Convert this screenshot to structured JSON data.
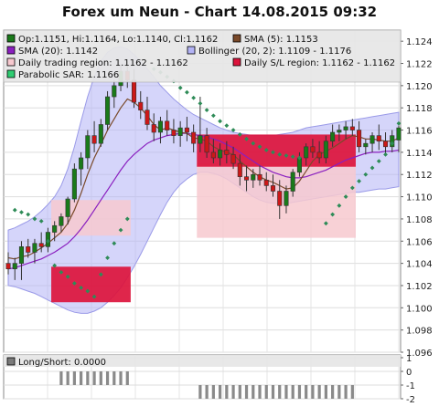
{
  "title": "Forex um Neun - Chart 14.08.2015 09:32",
  "legend": [
    {
      "text": "Op:1.1151, Hi:1.1164, Lo:1.1140, Cl:1.1162",
      "color": "#1a7a1a",
      "border": "#000000"
    },
    {
      "text": "SMA (5): 1.1153",
      "color": "#7a4a2a",
      "border": "#000000"
    },
    {
      "text": "SMA (20): 1.1142",
      "color": "#8a1fbf",
      "border": "#000000"
    },
    {
      "text": "Bollinger (20, 2): 1.1109 - 1.1176",
      "color": "#b3b3f5",
      "border": "#000000"
    },
    {
      "text": "Daily trading region: 1.1162 - 1.1162",
      "color": "#f7c9cf",
      "border": "#000000"
    },
    {
      "text": "Daily S/L region: 1.1162 - 1.1162",
      "color": "#dc143c",
      "border": "#000000"
    },
    {
      "text": "Parabolic SAR: 1.1166",
      "color": "#2ecc71",
      "border": "#000000"
    }
  ],
  "chart_data": [
    {
      "type": "candlestick",
      "ylim": [
        1.096,
        1.125
      ],
      "yticks": [
        "1.096",
        "1.098",
        "1.100",
        "1.102",
        "1.104",
        "1.106",
        "1.108",
        "1.110",
        "1.112",
        "1.114",
        "1.116",
        "1.118",
        "1.120",
        "1.122",
        "1.124"
      ],
      "grid": true,
      "colors": {
        "up": "#1a7a1a",
        "down": "#cc1818",
        "sma5": "#7a4a2a",
        "sma20": "#8a1fbf",
        "bollinger": "#b3b3f5",
        "sar": "#2e8b57",
        "trading_region": "#f7c9cf",
        "sl_region": "#dc143c"
      },
      "candles": [
        [
          1.104,
          1.105,
          1.103,
          1.1035
        ],
        [
          1.1035,
          1.1045,
          1.1025,
          1.104
        ],
        [
          1.104,
          1.106,
          1.1025,
          1.1055
        ],
        [
          1.1055,
          1.1062,
          1.1045,
          1.105
        ],
        [
          1.105,
          1.1062,
          1.104,
          1.1058
        ],
        [
          1.1058,
          1.1068,
          1.105,
          1.1055
        ],
        [
          1.1055,
          1.1072,
          1.105,
          1.1068
        ],
        [
          1.1068,
          1.1078,
          1.106,
          1.1074
        ],
        [
          1.1074,
          1.1085,
          1.1068,
          1.1082
        ],
        [
          1.1082,
          1.11,
          1.1075,
          1.1098
        ],
        [
          1.1098,
          1.113,
          1.1095,
          1.1125
        ],
        [
          1.1125,
          1.114,
          1.111,
          1.1135
        ],
        [
          1.1135,
          1.116,
          1.1125,
          1.1155
        ],
        [
          1.1155,
          1.1168,
          1.114,
          1.1148
        ],
        [
          1.1148,
          1.117,
          1.1145,
          1.1165
        ],
        [
          1.1165,
          1.1195,
          1.116,
          1.119
        ],
        [
          1.119,
          1.1205,
          1.118,
          1.12
        ],
        [
          1.12,
          1.1218,
          1.1195,
          1.1213
        ],
        [
          1.1213,
          1.1222,
          1.1198,
          1.1205
        ],
        [
          1.1205,
          1.1215,
          1.118,
          1.1185
        ],
        [
          1.1185,
          1.1195,
          1.117,
          1.1178
        ],
        [
          1.1178,
          1.119,
          1.116,
          1.1165
        ],
        [
          1.1165,
          1.1175,
          1.115,
          1.1158
        ],
        [
          1.1158,
          1.1172,
          1.1148,
          1.1168
        ],
        [
          1.1168,
          1.1178,
          1.1155,
          1.116
        ],
        [
          1.116,
          1.117,
          1.1148,
          1.1155
        ],
        [
          1.1155,
          1.1168,
          1.1145,
          1.1162
        ],
        [
          1.1162,
          1.1172,
          1.115,
          1.1158
        ],
        [
          1.1158,
          1.1165,
          1.114,
          1.1148
        ],
        [
          1.1148,
          1.119,
          1.114,
          1.1155
        ],
        [
          1.1155,
          1.1162,
          1.1135,
          1.114
        ],
        [
          1.114,
          1.1152,
          1.113,
          1.1135
        ],
        [
          1.1135,
          1.1148,
          1.1128,
          1.1142
        ],
        [
          1.1142,
          1.115,
          1.113,
          1.1138
        ],
        [
          1.1138,
          1.1145,
          1.1125,
          1.113
        ],
        [
          1.113,
          1.1138,
          1.111,
          1.1118
        ],
        [
          1.1118,
          1.1128,
          1.1105,
          1.1115
        ],
        [
          1.1115,
          1.1125,
          1.1108,
          1.112
        ],
        [
          1.112,
          1.1128,
          1.111,
          1.1115
        ],
        [
          1.1115,
          1.1122,
          1.1105,
          1.111
        ],
        [
          1.111,
          1.112,
          1.11,
          1.1105
        ],
        [
          1.1105,
          1.1115,
          1.108,
          1.1092
        ],
        [
          1.1092,
          1.111,
          1.1085,
          1.1105
        ],
        [
          1.1105,
          1.1125,
          1.11,
          1.1122
        ],
        [
          1.1122,
          1.114,
          1.1118,
          1.1135
        ],
        [
          1.1135,
          1.1148,
          1.1128,
          1.1145
        ],
        [
          1.1145,
          1.1152,
          1.1135,
          1.114
        ],
        [
          1.114,
          1.115,
          1.113,
          1.1135
        ],
        [
          1.1135,
          1.1155,
          1.113,
          1.115
        ],
        [
          1.115,
          1.1165,
          1.1145,
          1.1158
        ],
        [
          1.1158,
          1.1165,
          1.115,
          1.116
        ],
        [
          1.116,
          1.1168,
          1.1152,
          1.1163
        ],
        [
          1.1163,
          1.117,
          1.1155,
          1.116
        ],
        [
          1.116,
          1.1168,
          1.114,
          1.1145
        ],
        [
          1.1145,
          1.1152,
          1.1138,
          1.1148
        ],
        [
          1.1148,
          1.1158,
          1.114,
          1.1155
        ],
        [
          1.1155,
          1.1165,
          1.1142,
          1.115
        ],
        [
          1.115,
          1.1158,
          1.1138,
          1.1145
        ],
        [
          1.1145,
          1.116,
          1.114,
          1.1155
        ],
        [
          1.1151,
          1.1164,
          1.114,
          1.1162
        ]
      ],
      "sma5": [
        1.1045,
        1.1044,
        1.1046,
        1.1047,
        1.105,
        1.1054,
        1.1058,
        1.1063,
        1.1068,
        1.1076,
        1.1088,
        1.1103,
        1.112,
        1.1135,
        1.1147,
        1.116,
        1.117,
        1.118,
        1.1188,
        1.1185,
        1.118,
        1.1173,
        1.1165,
        1.116,
        1.1162,
        1.116,
        1.1158,
        1.1157,
        1.1153,
        1.1152,
        1.115,
        1.1145,
        1.1142,
        1.114,
        1.1138,
        1.1132,
        1.1127,
        1.1122,
        1.1118,
        1.1115,
        1.1113,
        1.111,
        1.1107,
        1.1108,
        1.1114,
        1.1123,
        1.1132,
        1.1138,
        1.1141,
        1.1144,
        1.1148,
        1.1152,
        1.1155,
        1.1154,
        1.1152,
        1.1152,
        1.1151,
        1.115,
        1.115,
        1.1153
      ],
      "sma20": [
        1.1035,
        1.1036,
        1.1038,
        1.104,
        1.1042,
        1.1044,
        1.1047,
        1.105,
        1.1054,
        1.1058,
        1.1064,
        1.1071,
        1.1079,
        1.1088,
        1.1097,
        1.1106,
        1.1115,
        1.1124,
        1.1132,
        1.1138,
        1.1143,
        1.1148,
        1.1151,
        1.1153,
        1.1155,
        1.1156,
        1.1157,
        1.1157,
        1.1156,
        1.1155,
        1.1154,
        1.1152,
        1.115,
        1.1147,
        1.1144,
        1.114,
        1.1136,
        1.1132,
        1.1128,
        1.1125,
        1.1122,
        1.112,
        1.1118,
        1.1117,
        1.1117,
        1.1118,
        1.112,
        1.1122,
        1.1124,
        1.1127,
        1.113,
        1.1133,
        1.1135,
        1.1137,
        1.1139,
        1.114,
        1.114,
        1.1141,
        1.1141,
        1.1142
      ],
      "bollinger_upper": [
        1.107,
        1.1072,
        1.1075,
        1.1078,
        1.1082,
        1.1087,
        1.1093,
        1.11,
        1.111,
        1.1125,
        1.1145,
        1.1168,
        1.119,
        1.1208,
        1.1222,
        1.123,
        1.1234,
        1.1235,
        1.1233,
        1.1228,
        1.1222,
        1.1215,
        1.1208,
        1.12,
        1.1194,
        1.1188,
        1.1183,
        1.1178,
        1.1174,
        1.1171,
        1.1168,
        1.1165,
        1.1162,
        1.116,
        1.1158,
        1.1157,
        1.1156,
        1.1155,
        1.1155,
        1.1155,
        1.1155,
        1.1156,
        1.1157,
        1.1158,
        1.116,
        1.1162,
        1.1163,
        1.1164,
        1.1165,
        1.1166,
        1.1167,
        1.1168,
        1.1169,
        1.117,
        1.1171,
        1.1172,
        1.1173,
        1.1174,
        1.1175,
        1.1176
      ],
      "bollinger_lower": [
        1.102,
        1.1019,
        1.1017,
        1.1015,
        1.1013,
        1.101,
        1.1007,
        1.1004,
        1.1001,
        1.0998,
        1.0996,
        1.0995,
        1.0995,
        1.0997,
        1.1,
        1.1005,
        1.1011,
        1.1018,
        1.1027,
        1.1037,
        1.1048,
        1.106,
        1.1072,
        1.1084,
        1.1095,
        1.1104,
        1.1111,
        1.1116,
        1.112,
        1.1122,
        1.1122,
        1.1121,
        1.1119,
        1.1116,
        1.1112,
        1.1108,
        1.1104,
        1.11,
        1.1097,
        1.1095,
        1.1094,
        1.1094,
        1.1094,
        1.1095,
        1.1096,
        1.1097,
        1.1098,
        1.1099,
        1.11,
        1.1101,
        1.1102,
        1.1103,
        1.1104,
        1.1104,
        1.1105,
        1.1106,
        1.1107,
        1.1107,
        1.1108,
        1.1109
      ],
      "sar": [
        [
          1,
          1.1088
        ],
        [
          2,
          1.1086
        ],
        [
          3,
          1.1084
        ],
        [
          4,
          1.108
        ],
        [
          5,
          1.1078
        ],
        [
          6,
          1.106
        ],
        [
          7,
          1.1038
        ],
        [
          8,
          1.1032
        ],
        [
          9,
          1.1028
        ],
        [
          10,
          1.1022
        ],
        [
          11,
          1.1018
        ],
        [
          12,
          1.1015
        ],
        [
          13,
          1.101
        ],
        [
          14,
          1.103
        ],
        [
          15,
          1.1045
        ],
        [
          16,
          1.1058
        ],
        [
          17,
          1.107
        ],
        [
          18,
          1.108
        ],
        [
          22,
          1.1215
        ],
        [
          23,
          1.1212
        ],
        [
          24,
          1.1208
        ],
        [
          25,
          1.1204
        ],
        [
          26,
          1.1198
        ],
        [
          27,
          1.1194
        ],
        [
          28,
          1.1189
        ],
        [
          29,
          1.1184
        ],
        [
          30,
          1.1178
        ],
        [
          31,
          1.1173
        ],
        [
          32,
          1.1168
        ],
        [
          33,
          1.1164
        ],
        [
          34,
          1.116
        ],
        [
          35,
          1.1156
        ],
        [
          36,
          1.1152
        ],
        [
          37,
          1.1148
        ],
        [
          38,
          1.1145
        ],
        [
          39,
          1.1142
        ],
        [
          40,
          1.114
        ],
        [
          41,
          1.1138
        ],
        [
          42,
          1.1137
        ],
        [
          43,
          1.1136
        ],
        [
          44,
          1.1135
        ],
        [
          48,
          1.1076
        ],
        [
          49,
          1.1084
        ],
        [
          50,
          1.1092
        ],
        [
          51,
          1.11
        ],
        [
          52,
          1.1108
        ],
        [
          53,
          1.1114
        ],
        [
          54,
          1.112
        ],
        [
          55,
          1.1126
        ],
        [
          56,
          1.1132
        ],
        [
          57,
          1.1138
        ],
        [
          58,
          1.1148
        ],
        [
          59,
          1.1166
        ]
      ],
      "regions": [
        {
          "kind": "trading",
          "from": 7,
          "to": 18,
          "low": 1.1065,
          "high": 1.1097
        },
        {
          "kind": "stoploss",
          "from": 7,
          "to": 18,
          "low": 1.1005,
          "high": 1.1037
        },
        {
          "kind": "trading",
          "from": 29,
          "to": 52,
          "low": 1.1063,
          "high": 1.113
        },
        {
          "kind": "stoploss",
          "from": 29,
          "to": 52,
          "low": 1.1127,
          "high": 1.1156
        }
      ]
    },
    {
      "type": "bar",
      "title": "Long/Short: 0.0000",
      "ylim": [
        -2,
        1.2
      ],
      "yticks": [
        "1",
        "0",
        "-1",
        "-2"
      ],
      "grid": true,
      "bars": [
        {
          "from": 8,
          "to": 18,
          "low": -1,
          "high": 0
        },
        {
          "from": 29,
          "to": 52,
          "low": -2,
          "high": -1
        }
      ]
    }
  ]
}
